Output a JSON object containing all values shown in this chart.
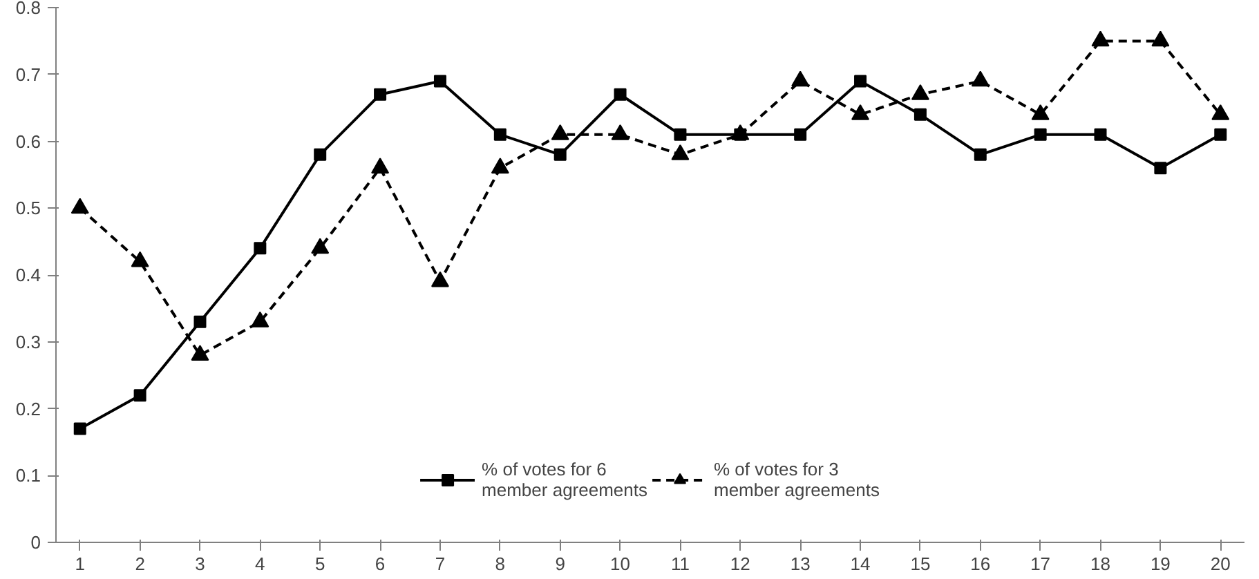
{
  "chart_data": {
    "type": "line",
    "x": [
      1,
      2,
      3,
      4,
      5,
      6,
      7,
      8,
      9,
      10,
      11,
      12,
      13,
      14,
      15,
      16,
      17,
      18,
      19,
      20
    ],
    "xlim": [
      0.6,
      20.4
    ],
    "xticks": [
      1,
      2,
      3,
      4,
      5,
      6,
      7,
      8,
      9,
      10,
      11,
      12,
      13,
      14,
      15,
      16,
      17,
      18,
      19,
      20
    ],
    "ylim": [
      0,
      0.8
    ],
    "yticks": [
      0,
      0.1,
      0.2,
      0.3,
      0.4,
      0.5,
      0.6,
      0.7,
      0.8
    ],
    "grid": false,
    "legend": "bottom",
    "series": [
      {
        "name": "% of votes for 6\nmember agreements",
        "color": "#000000",
        "marker": "square",
        "line_style": "solid",
        "values": [
          0.17,
          0.22,
          0.33,
          0.44,
          0.58,
          0.67,
          0.69,
          0.61,
          0.58,
          0.67,
          0.61,
          0.61,
          0.61,
          0.69,
          0.64,
          0.58,
          0.61,
          0.61,
          0.56,
          0.61
        ]
      },
      {
        "name": "% of votes for 3\nmember agreements",
        "color": "#000000",
        "marker": "triangle",
        "line_style": "dashed",
        "values": [
          0.5,
          0.42,
          0.28,
          0.33,
          0.44,
          0.56,
          0.39,
          0.56,
          0.61,
          0.61,
          0.58,
          0.61,
          0.69,
          0.64,
          0.67,
          0.69,
          0.64,
          0.75,
          0.75,
          0.64
        ]
      }
    ]
  }
}
